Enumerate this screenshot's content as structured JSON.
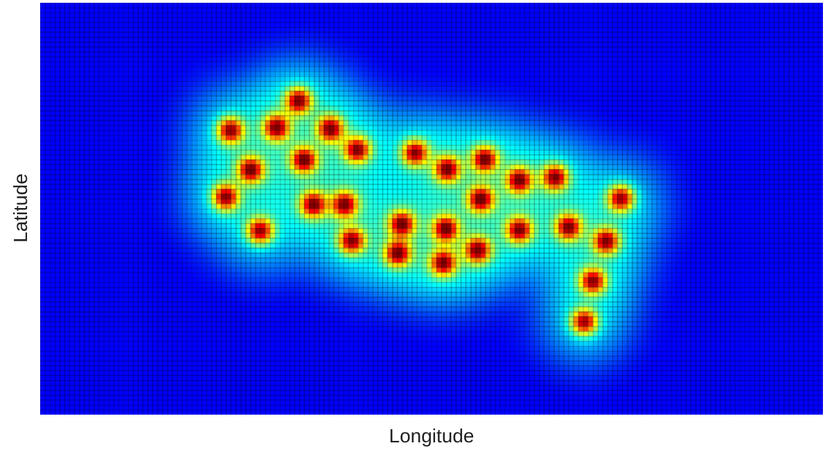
{
  "chart_data": {
    "type": "heatmap",
    "title": "",
    "xlabel": "Longitude",
    "ylabel": "Latitude",
    "xlim": [
      0,
      1
    ],
    "ylim": [
      0,
      1
    ],
    "grid": false,
    "colormap": "jet",
    "grid_cells": [
      160,
      84
    ],
    "peak_spread": 0.022,
    "peaks": [
      {
        "x": 0.33,
        "y": 0.762
      },
      {
        "x": 0.243,
        "y": 0.69
      },
      {
        "x": 0.302,
        "y": 0.697
      },
      {
        "x": 0.371,
        "y": 0.694
      },
      {
        "x": 0.405,
        "y": 0.643
      },
      {
        "x": 0.269,
        "y": 0.594
      },
      {
        "x": 0.337,
        "y": 0.618
      },
      {
        "x": 0.479,
        "y": 0.636
      },
      {
        "x": 0.52,
        "y": 0.596
      },
      {
        "x": 0.568,
        "y": 0.62
      },
      {
        "x": 0.612,
        "y": 0.569
      },
      {
        "x": 0.658,
        "y": 0.576
      },
      {
        "x": 0.237,
        "y": 0.528
      },
      {
        "x": 0.349,
        "y": 0.51
      },
      {
        "x": 0.389,
        "y": 0.51
      },
      {
        "x": 0.563,
        "y": 0.523
      },
      {
        "x": 0.742,
        "y": 0.525
      },
      {
        "x": 0.281,
        "y": 0.446
      },
      {
        "x": 0.462,
        "y": 0.463
      },
      {
        "x": 0.518,
        "y": 0.451
      },
      {
        "x": 0.612,
        "y": 0.448
      },
      {
        "x": 0.675,
        "y": 0.455
      },
      {
        "x": 0.398,
        "y": 0.422
      },
      {
        "x": 0.723,
        "y": 0.421
      },
      {
        "x": 0.457,
        "y": 0.391
      },
      {
        "x": 0.515,
        "y": 0.368
      },
      {
        "x": 0.559,
        "y": 0.399
      },
      {
        "x": 0.706,
        "y": 0.324
      },
      {
        "x": 0.695,
        "y": 0.225
      }
    ]
  }
}
